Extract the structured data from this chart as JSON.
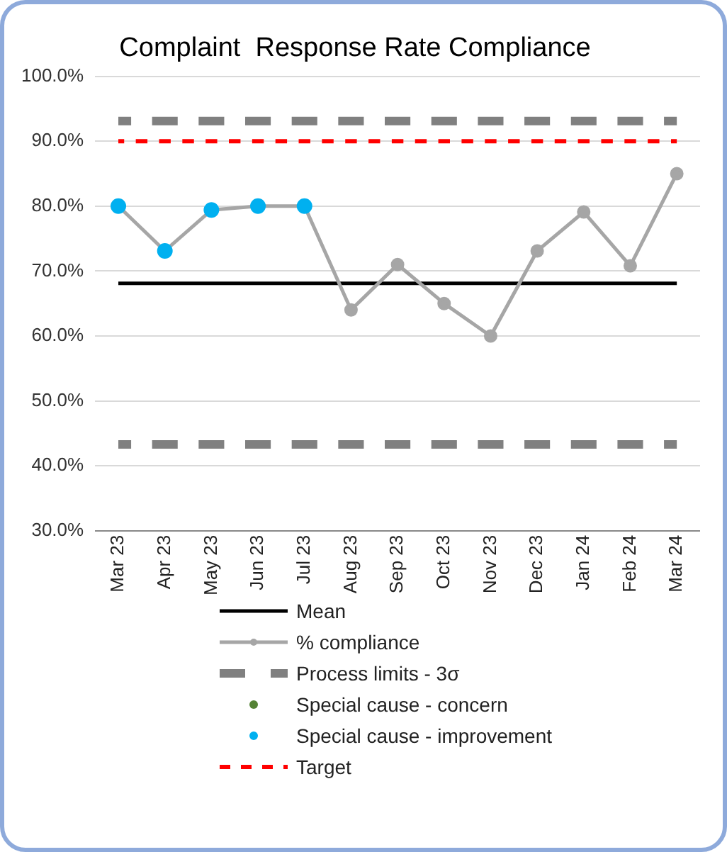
{
  "chart_data": {
    "type": "line",
    "title": "Complaint  Response Rate Compliance",
    "categories": [
      "Mar 23",
      "Apr 23",
      "May 23",
      "Jun 23",
      "Jul 23",
      "Aug 23",
      "Sep 23",
      "Oct 23",
      "Nov 23",
      "Dec 23",
      "Jan 24",
      "Feb 24",
      "Mar 24"
    ],
    "ylim": [
      30,
      100
    ],
    "yticks": [
      {
        "value": 30,
        "label": "30.0%"
      },
      {
        "value": 40,
        "label": "40.0%"
      },
      {
        "value": 50,
        "label": "50.0%"
      },
      {
        "value": 60,
        "label": "60.0%"
      },
      {
        "value": 70,
        "label": "70.0%"
      },
      {
        "value": 80,
        "label": "80.0%"
      },
      {
        "value": 90,
        "label": "90.0%"
      },
      {
        "value": 100,
        "label": "100.0%"
      }
    ],
    "grid": "y",
    "legend": "bottom",
    "series": [
      {
        "name": "Mean",
        "color": "#000000",
        "marker": "none",
        "line_style": "solid",
        "values": [
          68.1,
          68.1,
          68.1,
          68.1,
          68.1,
          68.1,
          68.1,
          68.1,
          68.1,
          68.1,
          68.1,
          68.1,
          68.1
        ]
      },
      {
        "name": "% compliance",
        "color": "#a6a6a6",
        "marker": "circle",
        "line_style": "solid",
        "values": [
          80,
          73.1,
          79.4,
          80,
          80,
          64,
          71,
          65,
          60,
          73.1,
          79.1,
          70.8,
          85
        ]
      },
      {
        "name": "Process limits - 3σ",
        "color": "#808080",
        "marker": "none",
        "line_style": "dashed",
        "values": [
          93.1,
          93.1,
          93.1,
          93.1,
          93.1,
          93.1,
          93.1,
          93.1,
          93.1,
          93.1,
          93.1,
          93.1,
          93.1
        ]
      },
      {
        "color": "#808080",
        "marker": "none",
        "line_style": "dashed",
        "values": [
          43.3,
          43.3,
          43.3,
          43.3,
          43.3,
          43.3,
          43.3,
          43.3,
          43.3,
          43.3,
          43.3,
          43.3,
          43.3
        ]
      },
      {
        "name": "Special cause - concern",
        "type": "scatter",
        "color": "#548235",
        "marker": "circle",
        "values": [
          null,
          null,
          null,
          null,
          null,
          null,
          null,
          null,
          null,
          null,
          null,
          null,
          null
        ]
      },
      {
        "name": "Special cause  - improvement",
        "type": "scatter",
        "color": "#00b0f0",
        "marker": "circle",
        "values": [
          80,
          73.1,
          79.4,
          80,
          80,
          null,
          null,
          null,
          null,
          null,
          null,
          null,
          null
        ]
      },
      {
        "name": "Target",
        "color": "#ff0000",
        "marker": "none",
        "line_style": "dotted",
        "values": [
          90,
          90,
          90,
          90,
          90,
          90,
          90,
          90,
          90,
          90,
          90,
          90,
          90
        ]
      }
    ]
  }
}
